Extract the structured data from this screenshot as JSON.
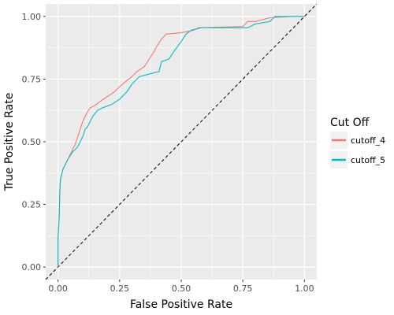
{
  "chart_data": {
    "type": "line",
    "title": "",
    "xlabel": "False Positive Rate",
    "ylabel": "True Positive Rate",
    "xlim": [
      -0.05,
      1.05
    ],
    "ylim": [
      -0.05,
      1.05
    ],
    "x_ticks": [
      0,
      0.25,
      0.5,
      0.75,
      1
    ],
    "x_tick_labels": [
      "0.00",
      "0.25",
      "0.50",
      "0.75",
      "1.00"
    ],
    "y_ticks": [
      0,
      0.25,
      0.5,
      0.75,
      1
    ],
    "y_tick_labels": [
      "0.00",
      "0.25",
      "0.50",
      "0.75",
      "1.00"
    ],
    "grid": true,
    "legend": {
      "title": "Cut Off",
      "position": "right"
    },
    "reference_line": {
      "style": "dashed",
      "color": "#000000",
      "from": [
        -0.05,
        -0.05
      ],
      "to": [
        1.05,
        1.05
      ]
    },
    "series": [
      {
        "name": "cutoff_4",
        "color": "#F8766D",
        "points": [
          [
            0.0,
            0.0
          ],
          [
            0.0,
            0.12
          ],
          [
            0.005,
            0.2
          ],
          [
            0.007,
            0.3
          ],
          [
            0.01,
            0.35
          ],
          [
            0.015,
            0.37
          ],
          [
            0.02,
            0.39
          ],
          [
            0.03,
            0.41
          ],
          [
            0.04,
            0.43
          ],
          [
            0.05,
            0.45
          ],
          [
            0.06,
            0.47
          ],
          [
            0.07,
            0.49
          ],
          [
            0.08,
            0.52
          ],
          [
            0.09,
            0.55
          ],
          [
            0.1,
            0.58
          ],
          [
            0.11,
            0.6
          ],
          [
            0.12,
            0.62
          ],
          [
            0.13,
            0.635
          ],
          [
            0.15,
            0.645
          ],
          [
            0.17,
            0.66
          ],
          [
            0.2,
            0.68
          ],
          [
            0.23,
            0.7
          ],
          [
            0.25,
            0.72
          ],
          [
            0.28,
            0.745
          ],
          [
            0.3,
            0.76
          ],
          [
            0.32,
            0.78
          ],
          [
            0.35,
            0.8
          ],
          [
            0.37,
            0.83
          ],
          [
            0.39,
            0.86
          ],
          [
            0.4,
            0.88
          ],
          [
            0.42,
            0.91
          ],
          [
            0.44,
            0.93
          ],
          [
            0.5,
            0.935
          ],
          [
            0.55,
            0.945
          ],
          [
            0.57,
            0.955
          ],
          [
            0.75,
            0.96
          ],
          [
            0.77,
            0.98
          ],
          [
            0.8,
            0.98
          ],
          [
            0.86,
            0.995
          ],
          [
            0.95,
            1.0
          ],
          [
            1.0,
            1.0
          ]
        ]
      },
      {
        "name": "cutoff_5",
        "color": "#00BFC4",
        "points": [
          [
            0.0,
            0.0
          ],
          [
            0.0,
            0.12
          ],
          [
            0.005,
            0.2
          ],
          [
            0.007,
            0.3
          ],
          [
            0.01,
            0.35
          ],
          [
            0.015,
            0.37
          ],
          [
            0.02,
            0.39
          ],
          [
            0.03,
            0.41
          ],
          [
            0.04,
            0.43
          ],
          [
            0.05,
            0.445
          ],
          [
            0.06,
            0.46
          ],
          [
            0.08,
            0.48
          ],
          [
            0.1,
            0.52
          ],
          [
            0.11,
            0.55
          ],
          [
            0.12,
            0.56
          ],
          [
            0.14,
            0.6
          ],
          [
            0.16,
            0.625
          ],
          [
            0.18,
            0.635
          ],
          [
            0.22,
            0.65
          ],
          [
            0.25,
            0.67
          ],
          [
            0.28,
            0.7
          ],
          [
            0.3,
            0.73
          ],
          [
            0.33,
            0.76
          ],
          [
            0.37,
            0.77
          ],
          [
            0.41,
            0.78
          ],
          [
            0.42,
            0.82
          ],
          [
            0.45,
            0.83
          ],
          [
            0.47,
            0.86
          ],
          [
            0.5,
            0.9
          ],
          [
            0.52,
            0.93
          ],
          [
            0.54,
            0.945
          ],
          [
            0.58,
            0.955
          ],
          [
            0.65,
            0.955
          ],
          [
            0.77,
            0.955
          ],
          [
            0.8,
            0.97
          ],
          [
            0.86,
            0.98
          ],
          [
            0.88,
            1.0
          ],
          [
            0.95,
            1.0
          ],
          [
            1.0,
            1.0
          ]
        ]
      }
    ]
  }
}
